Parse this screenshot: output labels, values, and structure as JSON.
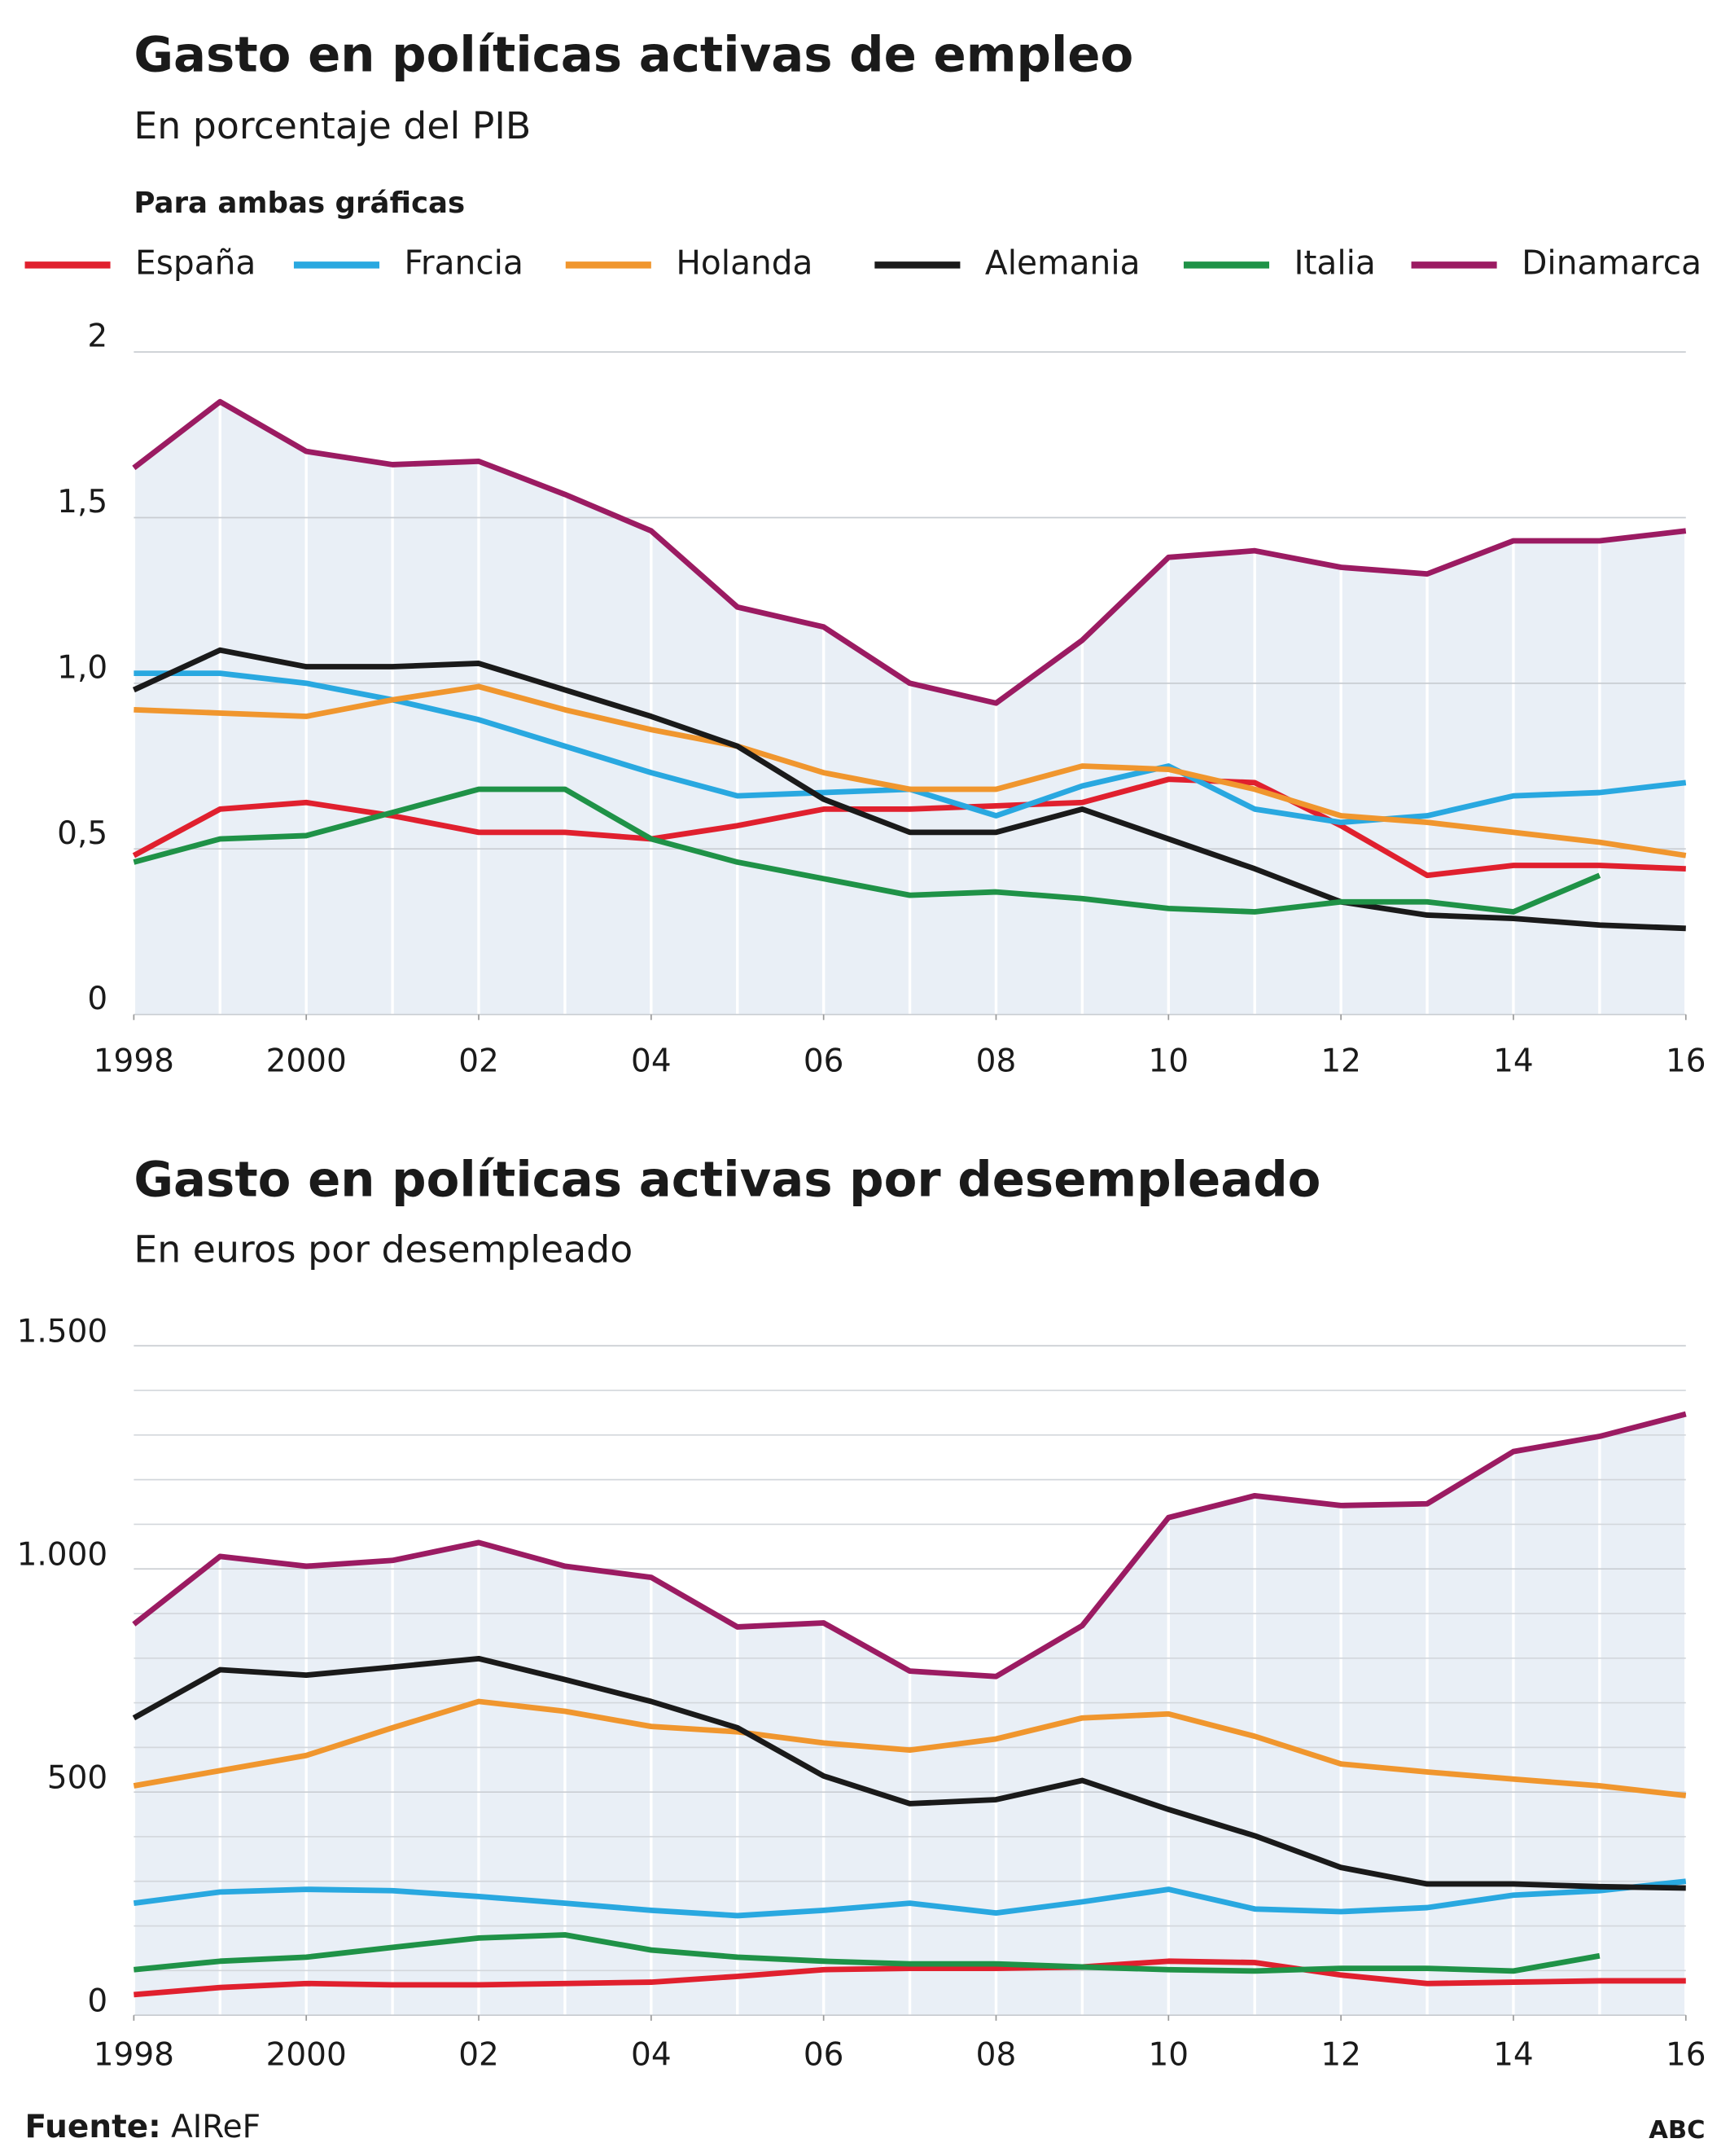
{
  "chart_data": [
    {
      "type": "line",
      "title": "Gasto en políticas activas de empleo",
      "subtitle": "En porcentaje del PIB",
      "legend_title": "Para ambas gráficas",
      "x": [
        1998,
        1999,
        2000,
        2001,
        2002,
        2003,
        2004,
        2005,
        2006,
        2007,
        2008,
        2009,
        2010,
        2011,
        2012,
        2013,
        2014,
        2015,
        2016
      ],
      "xlim": [
        1998,
        2016
      ],
      "xticks": [
        1998,
        2000,
        {
          "value": 2002,
          "label": "02"
        },
        {
          "value": 2004,
          "label": "04"
        },
        {
          "value": 2006,
          "label": "06"
        },
        {
          "value": 2008,
          "label": "08"
        },
        {
          "value": 2010,
          "label": "10"
        },
        {
          "value": 2012,
          "label": "12"
        },
        {
          "value": 2014,
          "label": "14"
        },
        {
          "value": 2016,
          "label": "16"
        }
      ],
      "ylim": [
        0,
        2
      ],
      "yticks": [
        0,
        {
          "value": 0.5,
          "label": "0,5"
        },
        {
          "value": 1,
          "label": "1,0"
        },
        {
          "value": 1.5,
          "label": "1,5"
        },
        2
      ],
      "grid": true,
      "area_color": "#e9eff6",
      "series": [
        {
          "name": "España",
          "color": "#e0202e",
          "values": [
            0.48,
            0.62,
            0.64,
            0.6,
            0.55,
            0.55,
            0.53,
            0.57,
            0.62,
            0.62,
            0.63,
            0.64,
            0.71,
            0.7,
            0.57,
            0.42,
            0.45,
            0.45,
            0.44
          ]
        },
        {
          "name": "Francia",
          "color": "#29a8e0",
          "values": [
            1.03,
            1.03,
            1.0,
            0.95,
            0.89,
            0.81,
            0.73,
            0.66,
            0.67,
            0.68,
            0.6,
            0.69,
            0.75,
            0.62,
            0.58,
            0.6,
            0.66,
            0.67,
            0.7
          ]
        },
        {
          "name": "Holanda",
          "color": "#f0962e",
          "values": [
            0.92,
            0.91,
            0.9,
            0.95,
            0.99,
            0.92,
            0.86,
            0.81,
            0.73,
            0.68,
            0.68,
            0.75,
            0.74,
            0.68,
            0.6,
            0.58,
            0.55,
            0.52,
            0.48
          ]
        },
        {
          "name": "Alemania",
          "color": "#1a1a1a",
          "values": [
            0.98,
            1.1,
            1.05,
            1.05,
            1.06,
            0.98,
            0.9,
            0.81,
            0.65,
            0.55,
            0.55,
            0.62,
            0.53,
            0.44,
            0.34,
            0.3,
            0.29,
            0.27,
            0.26
          ]
        },
        {
          "name": "Italia",
          "color": "#1f9247",
          "values": [
            0.46,
            0.53,
            0.54,
            0.61,
            0.68,
            0.68,
            0.53,
            0.46,
            0.41,
            0.36,
            0.37,
            0.35,
            0.32,
            0.31,
            0.34,
            0.34,
            0.31,
            0.42,
            null
          ]
        },
        {
          "name": "Dinamarca",
          "color": "#9b1b62",
          "values": [
            1.65,
            1.85,
            1.7,
            1.66,
            1.67,
            1.57,
            1.46,
            1.23,
            1.17,
            1.0,
            0.94,
            1.13,
            1.38,
            1.4,
            1.35,
            1.33,
            1.43,
            1.43,
            1.46
          ]
        }
      ]
    },
    {
      "type": "line",
      "title": "Gasto en políticas activas por desempleado",
      "subtitle": "En euros por desempleado",
      "x": [
        1998,
        1999,
        2000,
        2001,
        2002,
        2003,
        2004,
        2005,
        2006,
        2007,
        2008,
        2009,
        2010,
        2011,
        2012,
        2013,
        2014,
        2015,
        2016
      ],
      "xlim": [
        1998,
        2016
      ],
      "xticks": [
        1998,
        2000,
        {
          "value": 2002,
          "label": "02"
        },
        {
          "value": 2004,
          "label": "04"
        },
        {
          "value": 2006,
          "label": "06"
        },
        {
          "value": 2008,
          "label": "08"
        },
        {
          "value": 2010,
          "label": "10"
        },
        {
          "value": 2012,
          "label": "12"
        },
        {
          "value": 2014,
          "label": "14"
        },
        {
          "value": 2016,
          "label": "16"
        }
      ],
      "ylim": [
        0,
        1500
      ],
      "yticks": [
        0,
        500,
        {
          "value": 1000,
          "label": "1.000"
        },
        {
          "value": 1500,
          "label": "1.500"
        }
      ],
      "minor_yticks": [
        100,
        200,
        300,
        400,
        600,
        700,
        800,
        900,
        1100,
        1200,
        1300,
        1400
      ],
      "grid": true,
      "area_color": "#e9eff6",
      "series": [
        {
          "color": "#e0202e",
          "values": [
            46,
            62,
            71,
            68,
            68,
            71,
            74,
            87,
            102,
            105,
            105,
            108,
            121,
            118,
            90,
            71,
            74,
            77,
            77
          ]
        },
        {
          "color": "#29a8e0",
          "values": [
            251,
            276,
            282,
            279,
            266,
            251,
            235,
            223,
            235,
            251,
            229,
            254,
            282,
            238,
            232,
            241,
            269,
            279,
            300
          ]
        },
        {
          "color": "#f0962e",
          "values": [
            514,
            548,
            582,
            644,
            703,
            681,
            647,
            635,
            610,
            594,
            619,
            666,
            675,
            625,
            563,
            545,
            529,
            514,
            492
          ]
        },
        {
          "color": "#1a1a1a",
          "values": [
            666,
            774,
            762,
            780,
            799,
            752,
            703,
            644,
            536,
            474,
            483,
            526,
            461,
            402,
            331,
            294,
            294,
            288,
            285
          ]
        },
        {
          "color": "#1f9247",
          "values": [
            102,
            121,
            130,
            152,
            173,
            180,
            146,
            130,
            121,
            115,
            115,
            108,
            102,
            99,
            105,
            105,
            99,
            133,
            null
          ]
        },
        {
          "color": "#9b1b62",
          "values": [
            876,
            1028,
            1006,
            1019,
            1059,
            1006,
            981,
            870,
            879,
            771,
            759,
            873,
            1115,
            1164,
            1142,
            1146,
            1263,
            1297,
            1347
          ]
        }
      ]
    }
  ],
  "source": {
    "label": "Fuente:",
    "text": "AIReF"
  },
  "credit": "ABC"
}
